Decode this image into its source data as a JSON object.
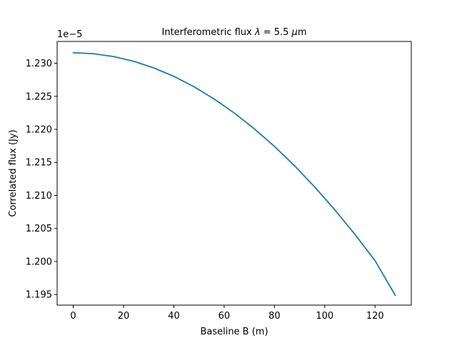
{
  "chart_data": {
    "type": "line",
    "title": {
      "prefix": "Interferometric flux ",
      "symbol": "λ",
      "suffix": " = 5.5 ",
      "unit_mu": "μ",
      "unit_m": "m"
    },
    "xlabel": "Baseline B (m)",
    "ylabel": "Correlated flux (Jy)",
    "offset_label": "1e−5",
    "xlim": [
      -6.4,
      134.4
    ],
    "ylim": [
      1.1934,
      1.2333
    ],
    "x_ticks": [
      0,
      20,
      40,
      60,
      80,
      100,
      120
    ],
    "x_tick_labels": [
      "0",
      "20",
      "40",
      "60",
      "80",
      "100",
      "120"
    ],
    "y_ticks": [
      1.195,
      1.2,
      1.205,
      1.21,
      1.215,
      1.22,
      1.225,
      1.23
    ],
    "y_tick_labels": [
      "1.195",
      "1.200",
      "1.205",
      "1.210",
      "1.215",
      "1.220",
      "1.225",
      "1.230"
    ],
    "grid": false,
    "series": [
      {
        "color": "#1f77b4",
        "x": [
          0,
          8,
          16,
          24,
          32,
          40,
          48,
          56,
          64,
          72,
          80,
          88,
          96,
          104,
          112,
          120,
          128
        ],
        "y": [
          1.2316,
          1.23145,
          1.23102,
          1.2303,
          1.2293,
          1.22802,
          1.22645,
          1.2246,
          1.22248,
          1.22008,
          1.21742,
          1.21448,
          1.21128,
          1.20782,
          1.2041,
          1.20012,
          1.1949
        ]
      }
    ]
  }
}
